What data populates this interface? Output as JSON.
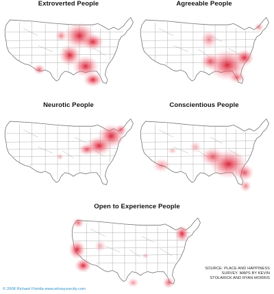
{
  "maps": [
    {
      "title": "Extroverted People"
    },
    {
      "title": "Agreeable People"
    },
    {
      "title": "Neurotic People"
    },
    {
      "title": "Conscientious People"
    },
    {
      "title": "Open to Experience People"
    }
  ],
  "source_lines": [
    "SOURCE: PLACE AND HAPPINESS",
    "SURVEY. MAPS BY KEVIN",
    "STOLARICK AND RYAN MORRIS"
  ],
  "credit": "© 2008 Richard Florida  www.whosyourcity.com",
  "colors": {
    "hotspot": "#e3283c",
    "state_border": "#9a9a9a",
    "outline": "#6f6f6f",
    "credit_text": "#2e8fc7"
  }
}
